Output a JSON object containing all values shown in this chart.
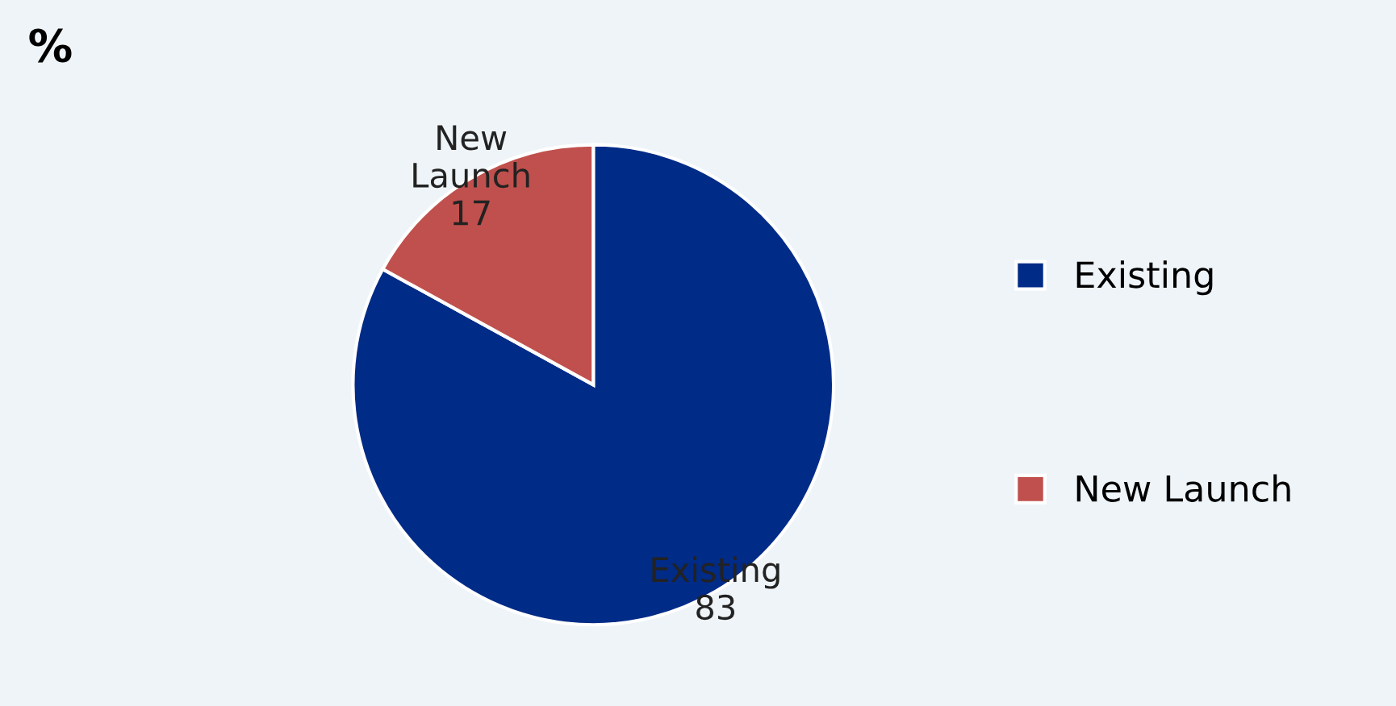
{
  "chart_data": {
    "type": "pie",
    "title": "%",
    "categories": [
      "Existing",
      "New Launch"
    ],
    "values": [
      83,
      17
    ],
    "colors": [
      "#002b87",
      "#c0504d"
    ],
    "data_labels": true,
    "legend": "right"
  }
}
